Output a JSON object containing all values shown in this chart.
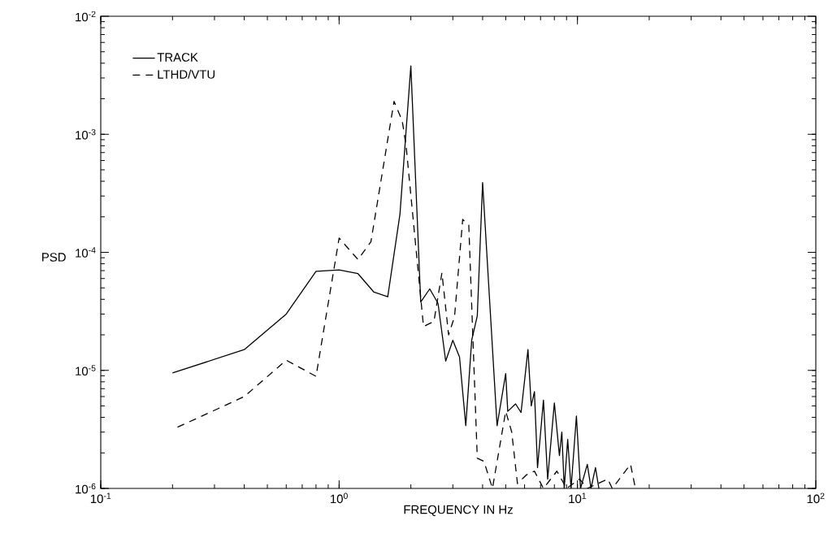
{
  "chart_data": {
    "type": "line",
    "xlabel": "FREQUENCY IN Hz",
    "ylabel": "PSD",
    "log": "xy",
    "xlim": [
      0.1,
      100
    ],
    "ylim": [
      1e-06,
      0.01
    ],
    "xticks": [
      {
        "value": 0.1,
        "label": "10$^{-1}$"
      },
      {
        "value": 1,
        "label": "10$^{0}$"
      },
      {
        "value": 10,
        "label": "10$^{1}$"
      },
      {
        "value": 100,
        "label": "10$^{2}$"
      }
    ],
    "yticks": [
      {
        "value": 1e-06,
        "label": "10$^{-6}$"
      },
      {
        "value": 1e-05,
        "label": "10$^{-5}$"
      },
      {
        "value": 0.0001,
        "label": "10$^{-4}$"
      },
      {
        "value": 0.001,
        "label": "10$^{-3}$"
      },
      {
        "value": 0.01,
        "label": "10$^{-2}$"
      }
    ],
    "grid": false,
    "legend": "top left",
    "marker": "none",
    "series": [
      {
        "name": "TRACK",
        "color": "#000000",
        "line_style": "solid",
        "x": [
          0.2,
          0.4,
          0.6,
          0.8,
          1.0,
          1.2,
          1.4,
          1.6,
          1.8,
          2.0,
          2.2,
          2.4,
          2.6,
          2.8,
          3.0,
          3.2,
          3.4,
          3.6,
          3.8,
          4.0,
          4.6,
          5.0,
          5.1,
          5.5,
          5.8,
          6.2,
          6.4,
          6.6,
          6.8,
          7.2,
          7.5,
          8.0,
          8.4,
          8.6,
          8.8,
          9.1,
          9.4,
          9.9,
          10.3,
          11.0,
          11.4,
          11.9,
          12.3
        ],
        "values": [
          9.5e-06,
          1.5e-05,
          3e-05,
          6.9e-05,
          7.1e-05,
          6.6e-05,
          4.6e-05,
          4.2e-05,
          0.00021,
          0.0038,
          3.8e-05,
          4.9e-05,
          3.7e-05,
          1.2e-05,
          1.8e-05,
          1.3e-05,
          3.4e-06,
          1.8e-05,
          2.9e-05,
          0.00039,
          3.4e-06,
          9.4e-06,
          4.5e-06,
          5.2e-06,
          4.4e-06,
          1.5e-05,
          5e-06,
          6.6e-06,
          1.5e-06,
          5.6e-06,
          1.2e-06,
          5.3e-06,
          1.9e-06,
          3e-06,
          1e-06,
          2.6e-06,
          1e-06,
          4.1e-06,
          1e-06,
          1.6e-06,
          1e-06,
          1.5e-06,
          1e-06
        ]
      },
      {
        "name": "LTHD/VTU",
        "color": "#000000",
        "line_style": "dashed",
        "x": [
          0.21,
          0.4,
          0.6,
          0.8,
          1.0,
          1.2,
          1.36,
          1.7,
          1.84,
          1.91,
          2.26,
          2.5,
          2.7,
          2.88,
          3.05,
          3.3,
          3.5,
          3.8,
          4.05,
          4.4,
          5.0,
          5.3,
          5.6,
          6.1,
          6.6,
          7.2,
          8.2,
          9.0,
          10.2,
          11.0,
          13.4,
          14.0,
          16.7,
          17.5
        ],
        "values": [
          3.3e-06,
          6e-06,
          1.22e-05,
          8.9e-06,
          0.000132,
          8.7e-05,
          0.000123,
          0.0019,
          0.0013,
          0.0008,
          2.35e-05,
          2.6e-05,
          6.7e-05,
          2e-05,
          2.85e-05,
          0.00019,
          0.00017,
          1.8e-06,
          1.7e-06,
          1e-06,
          4.5e-06,
          3e-06,
          1.1e-06,
          1.3e-06,
          1.4e-06,
          1e-06,
          1.4e-06,
          1e-06,
          1.2e-06,
          1e-06,
          1.2e-06,
          1e-06,
          1.6e-06,
          1e-06
        ]
      }
    ]
  }
}
